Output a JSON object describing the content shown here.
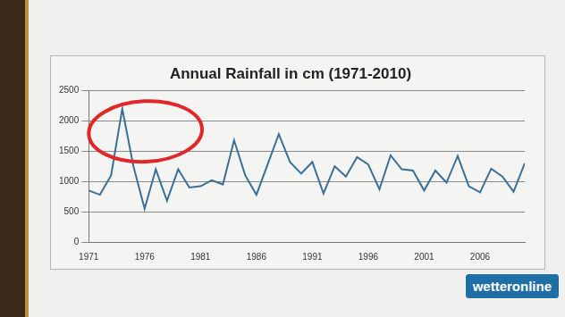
{
  "chart_data": {
    "type": "line",
    "title": "Annual Rainfall in cm (1971-2010)",
    "categories": [
      "1971",
      null,
      null,
      null,
      null,
      "1976",
      null,
      null,
      null,
      null,
      "1981",
      null,
      null,
      null,
      null,
      "1986",
      null,
      null,
      null,
      null,
      "1991",
      null,
      null,
      null,
      null,
      "1996",
      null,
      null,
      null,
      null,
      "2001",
      null,
      null,
      null,
      null,
      "2006",
      null,
      null,
      null,
      null
    ],
    "values": [
      850,
      780,
      1100,
      2200,
      1250,
      550,
      1200,
      680,
      1200,
      900,
      920,
      1020,
      950,
      1680,
      1100,
      780,
      1280,
      1780,
      1320,
      1130,
      1320,
      800,
      1250,
      1080,
      1400,
      1280,
      870,
      1430,
      1200,
      1180,
      850,
      1180,
      980,
      1420,
      920,
      820,
      1210,
      1080,
      830,
      1300
    ],
    "color": "#3a6f96",
    "ylim": [
      0,
      2500
    ],
    "yticks": [
      0,
      500,
      1000,
      1500,
      2000,
      2500
    ],
    "grid": true,
    "annotations": [
      "wetteronline"
    ]
  }
}
